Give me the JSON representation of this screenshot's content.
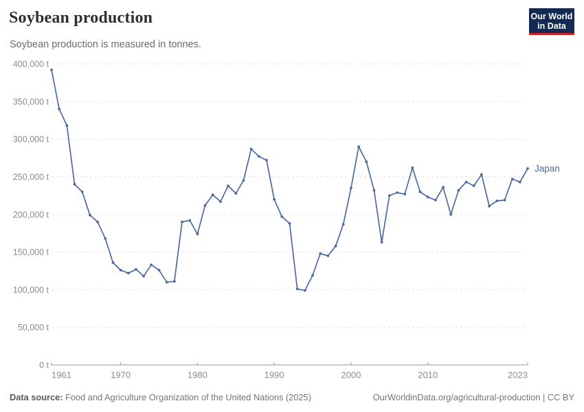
{
  "header": {
    "title": "Soybean production",
    "subtitle": "Soybean production is measured in tonnes.",
    "logo": {
      "line1": "Our World",
      "line2": "in Data"
    }
  },
  "colors": {
    "series_blue": "#4c6a9c",
    "gridline": "#e0e0e0",
    "axis": "#9b9b9b",
    "tick_label": "#8b8b8b",
    "logo_bg": "#142a50",
    "logo_accent": "#cd2328"
  },
  "chart_data": {
    "type": "line",
    "title": "Soybean production",
    "subtitle": "Soybean production is measured in tonnes.",
    "unit": "t",
    "grid": true,
    "legend_position": "end-of-line-label",
    "ylim": [
      0,
      400000
    ],
    "yticks": [
      0,
      50000,
      100000,
      150000,
      200000,
      250000,
      300000,
      350000,
      400000
    ],
    "xticks": [
      1961,
      1970,
      1980,
      1990,
      2000,
      2010,
      2023
    ],
    "x": [
      1961,
      1962,
      1963,
      1964,
      1965,
      1966,
      1967,
      1968,
      1969,
      1970,
      1971,
      1972,
      1973,
      1974,
      1975,
      1976,
      1977,
      1978,
      1979,
      1980,
      1981,
      1982,
      1983,
      1984,
      1985,
      1986,
      1987,
      1988,
      1989,
      1990,
      1991,
      1992,
      1993,
      1994,
      1995,
      1996,
      1997,
      1998,
      1999,
      2000,
      2001,
      2002,
      2003,
      2004,
      2005,
      2006,
      2007,
      2008,
      2009,
      2010,
      2011,
      2012,
      2013,
      2014,
      2015,
      2016,
      2017,
      2018,
      2019,
      2020,
      2021,
      2022,
      2023
    ],
    "series": [
      {
        "name": "Japan",
        "color": "#4c6a9c",
        "values": [
          392000,
          340000,
          318000,
          240000,
          230000,
          199000,
          190000,
          168000,
          136000,
          126000,
          122000,
          127000,
          118000,
          133000,
          126000,
          110000,
          111000,
          190000,
          192000,
          174000,
          212000,
          226000,
          217000,
          238000,
          228000,
          245000,
          287000,
          277000,
          272000,
          220000,
          197000,
          188000,
          101000,
          99000,
          119000,
          148000,
          145000,
          158000,
          187000,
          235000,
          290000,
          270000,
          232000,
          163000,
          225000,
          229000,
          227000,
          262000,
          230000,
          223000,
          219000,
          236000,
          200000,
          232000,
          243000,
          238000,
          253000,
          211000,
          218000,
          219000,
          247000,
          243000,
          261000
        ]
      }
    ]
  },
  "footer": {
    "source_label": "Data source:",
    "source_text": " Food and Agriculture Organization of the United Nations (2025)",
    "link_text": "OurWorldinData.org/agricultural-production | CC BY"
  }
}
